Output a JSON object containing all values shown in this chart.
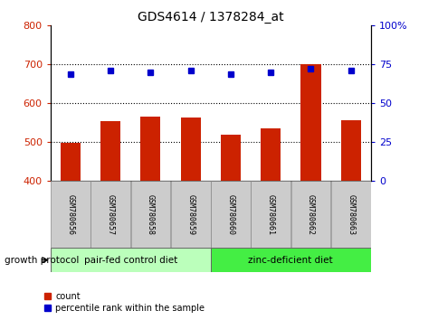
{
  "title": "GDS4614 / 1378284_at",
  "samples": [
    "GSM780656",
    "GSM780657",
    "GSM780658",
    "GSM780659",
    "GSM780660",
    "GSM780661",
    "GSM780662",
    "GSM780663"
  ],
  "counts": [
    499,
    553,
    565,
    562,
    520,
    536,
    700,
    556
  ],
  "percentiles": [
    69,
    71,
    70,
    71,
    69,
    70,
    72,
    71
  ],
  "ylim_left": [
    400,
    800
  ],
  "ylim_right": [
    0,
    100
  ],
  "yticks_left": [
    400,
    500,
    600,
    700,
    800
  ],
  "yticks_right": [
    0,
    25,
    50,
    75,
    100
  ],
  "bar_color": "#cc2200",
  "dot_color": "#0000cc",
  "group1_label": "pair-fed control diet",
  "group2_label": "zinc-deficient diet",
  "group1_color": "#bbffbb",
  "group2_color": "#44ee44",
  "group_protocol_label": "growth protocol",
  "legend_count": "count",
  "legend_percentile": "percentile rank within the sample",
  "bar_bottom": 400,
  "left_tick_color": "#cc2200",
  "right_tick_color": "#0000cc",
  "label_box_color": "#cccccc",
  "label_box_edge": "#888888",
  "grid_ticks": [
    500,
    600,
    700
  ]
}
